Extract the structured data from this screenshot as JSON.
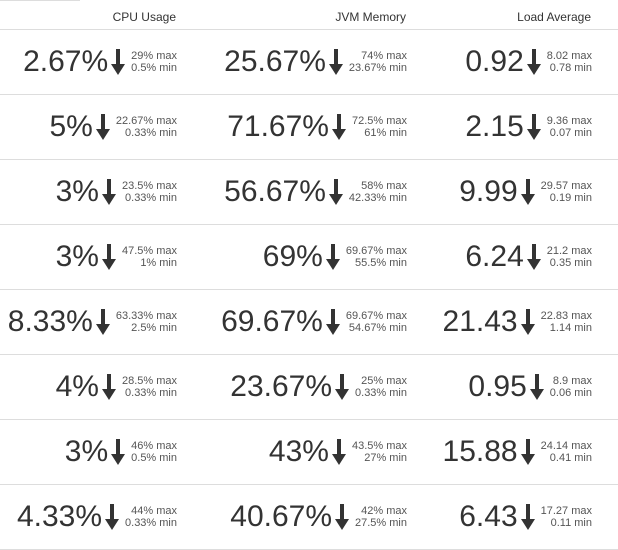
{
  "headers": {
    "cpu": "CPU Usage",
    "jvm": "JVM Memory",
    "load": "Load Average"
  },
  "trend_icon": "arrow-down-icon",
  "rows": [
    {
      "cpu": {
        "value": "2.67%",
        "max": "29% max",
        "min": "0.5% min"
      },
      "jvm": {
        "value": "25.67%",
        "max": "74% max",
        "min": "23.67% min"
      },
      "load": {
        "value": "0.92",
        "max": "8.02 max",
        "min": "0.78 min"
      }
    },
    {
      "cpu": {
        "value": "5%",
        "max": "22.67% max",
        "min": "0.33% min"
      },
      "jvm": {
        "value": "71.67%",
        "max": "72.5% max",
        "min": "61% min"
      },
      "load": {
        "value": "2.15",
        "max": "9.36 max",
        "min": "0.07 min"
      }
    },
    {
      "cpu": {
        "value": "3%",
        "max": "23.5% max",
        "min": "0.33% min"
      },
      "jvm": {
        "value": "56.67%",
        "max": "58% max",
        "min": "42.33% min"
      },
      "load": {
        "value": "9.99",
        "max": "29.57 max",
        "min": "0.19 min"
      }
    },
    {
      "cpu": {
        "value": "3%",
        "max": "47.5% max",
        "min": "1% min"
      },
      "jvm": {
        "value": "69%",
        "max": "69.67% max",
        "min": "55.5% min"
      },
      "load": {
        "value": "6.24",
        "max": "21.2 max",
        "min": "0.35 min"
      }
    },
    {
      "cpu": {
        "value": "8.33%",
        "max": "63.33% max",
        "min": "2.5% min"
      },
      "jvm": {
        "value": "69.67%",
        "max": "69.67% max",
        "min": "54.67% min"
      },
      "load": {
        "value": "21.43",
        "max": "22.83 max",
        "min": "1.14 min"
      }
    },
    {
      "cpu": {
        "value": "4%",
        "max": "28.5% max",
        "min": "0.33% min"
      },
      "jvm": {
        "value": "23.67%",
        "max": "25% max",
        "min": "0.33% min"
      },
      "load": {
        "value": "0.95",
        "max": "8.9 max",
        "min": "0.06 min"
      }
    },
    {
      "cpu": {
        "value": "3%",
        "max": "46% max",
        "min": "0.5% min"
      },
      "jvm": {
        "value": "43%",
        "max": "43.5% max",
        "min": "27% min"
      },
      "load": {
        "value": "15.88",
        "max": "24.14 max",
        "min": "0.41 min"
      }
    },
    {
      "cpu": {
        "value": "4.33%",
        "max": "44% max",
        "min": "0.33% min"
      },
      "jvm": {
        "value": "40.67%",
        "max": "42% max",
        "min": "27.5% min"
      },
      "load": {
        "value": "6.43",
        "max": "17.27 max",
        "min": "0.11 min"
      }
    }
  ]
}
